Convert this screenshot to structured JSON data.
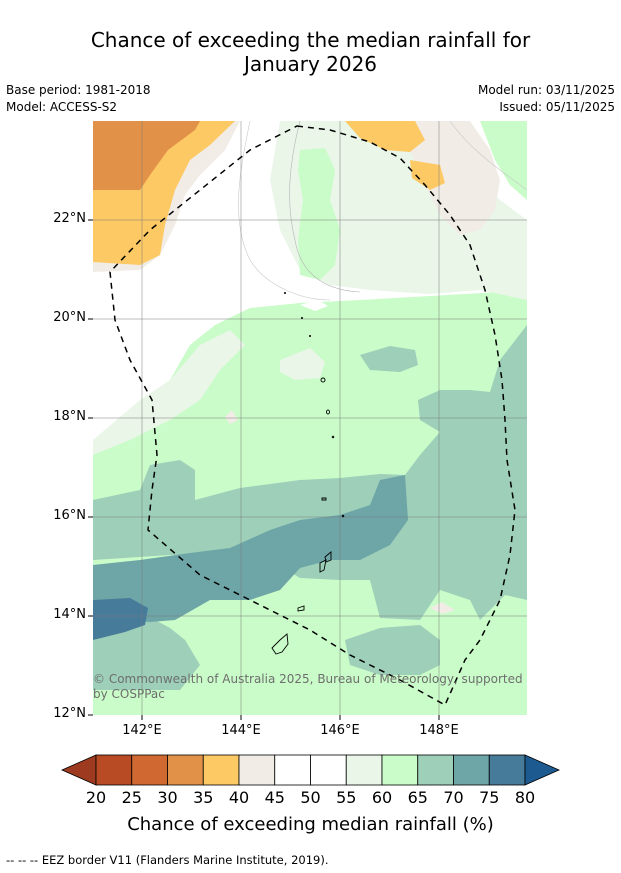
{
  "title_line1": "Chance of exceeding the median rainfall for",
  "title_line2": "January 2026",
  "meta": {
    "base_period": "Base period: 1981-2018",
    "model": "Model: ACCESS-S2",
    "model_run": "Model run: 03/11/2025",
    "issued": "Issued: 05/11/2025"
  },
  "map": {
    "latitude_ticks": [
      "22°N",
      "20°N",
      "18°N",
      "16°N",
      "14°N",
      "12°N"
    ],
    "longitude_ticks": [
      "142°E",
      "144°E",
      "146°E",
      "148°E"
    ],
    "copyright": "© Commonwealth of Australia 2025, Bureau of Meteorology, supported by COSPPac"
  },
  "colorbar": {
    "labels": [
      "20",
      "25",
      "30",
      "35",
      "40",
      "45",
      "50",
      "55",
      "60",
      "65",
      "70",
      "75",
      "80"
    ],
    "colors": [
      "#9e3a1f",
      "#b84a24",
      "#cf6931",
      "#e19248",
      "#fdc965",
      "#f1ece6",
      "#ffffff",
      "#ffffff",
      "#e9f6e8",
      "#c9fcc8",
      "#9dcfb9",
      "#6ea5a7",
      "#467b9a",
      "#1c5a8f"
    ],
    "title": "Chance of exceeding median rainfall (%)"
  },
  "footnote": "--  --  -- EEZ border V11 (Flanders Marine Institute, 2019)."
}
